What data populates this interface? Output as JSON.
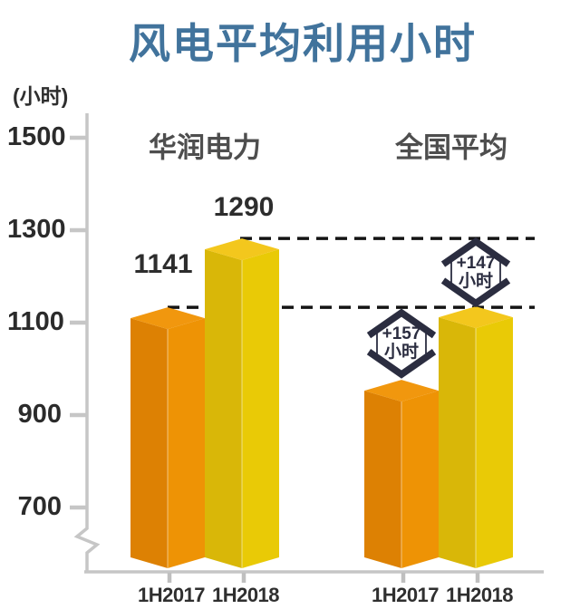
{
  "chart": {
    "title": "风电平均利用小时",
    "unit_label": "(小时)"
  },
  "chart_data": {
    "type": "bar",
    "title": "风电平均利用小时",
    "ylabel": "(小时)",
    "y_ticks": [
      1500,
      1300,
      1100,
      900,
      700
    ],
    "ylim_shown": [
      600,
      1560
    ],
    "axis_break": true,
    "grid": false,
    "legend": "none",
    "categories": [
      "1H2017",
      "1H2018"
    ],
    "groups": [
      {
        "label": "华润电力",
        "bars": [
          {
            "category": "1H2017",
            "value": 1141,
            "value_label": "1141",
            "color_name": "orange"
          },
          {
            "category": "1H2018",
            "value": 1290,
            "value_label": "1290",
            "color_name": "yellow"
          }
        ]
      },
      {
        "label": "全国平均",
        "bars": [
          {
            "category": "1H2017",
            "value": 984,
            "value_label": "",
            "color_name": "orange"
          },
          {
            "category": "1H2018",
            "value": 1143,
            "value_label": "",
            "color_name": "yellow"
          }
        ]
      }
    ],
    "reference_lines": [
      {
        "value": 1290,
        "style": "dashed"
      },
      {
        "value": 1141,
        "style": "dashed"
      }
    ],
    "annotations": [
      {
        "line1": "+157",
        "line2": "小时",
        "group": "全国平均",
        "category": "1H2017",
        "compares_to_value": 1141
      },
      {
        "line1": "+147",
        "line2": "小时",
        "group": "全国平均",
        "category": "1H2018",
        "compares_to_value": 1290
      }
    ],
    "colors": {
      "orange_left": "#DD8103",
      "orange_right": "#EE9305",
      "orange_top": "#F1970E",
      "yellow_left": "#D9B708",
      "yellow_right": "#E9CA06",
      "yellow_top": "#F3C71D",
      "annotation": "#2B2D40",
      "dashed_line": "#141414",
      "axis": "#C6C6C6",
      "x_tick": "#BFBFBF",
      "title": "#41739C",
      "group_label": "#4E4E4E",
      "value_label": "#2D2D2D",
      "tick_label": "#2B2B2B"
    }
  }
}
